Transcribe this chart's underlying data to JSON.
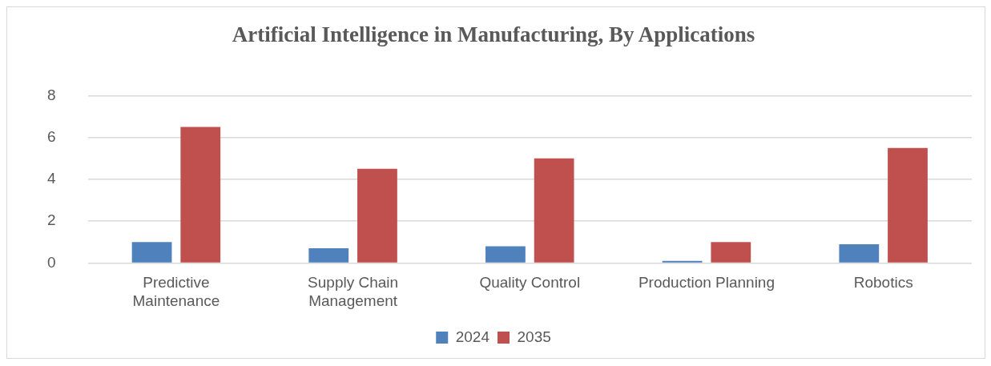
{
  "chart_data": {
    "type": "bar",
    "title": "Artificial Intelligence in Manufacturing, By Applications",
    "categories": [
      "Predictive Maintenance",
      "Supply Chain Management",
      "Quality Control",
      "Production Planning",
      "Robotics"
    ],
    "series": [
      {
        "name": "2024",
        "color": "#4f81bd",
        "values": [
          1,
          0.7,
          0.8,
          0.1,
          0.9
        ]
      },
      {
        "name": "2035",
        "color": "#c0504d",
        "values": [
          6.5,
          4.5,
          5,
          1,
          5.5
        ]
      }
    ],
    "ylim": [
      0,
      8
    ],
    "yticks": [
      0,
      2,
      4,
      6,
      8
    ],
    "grid": "y",
    "legend": "bottom"
  }
}
